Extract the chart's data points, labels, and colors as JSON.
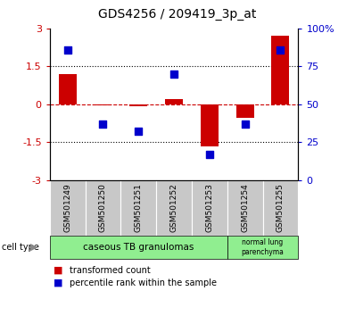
{
  "title": "GDS4256 / 209419_3p_at",
  "samples": [
    "GSM501249",
    "GSM501250",
    "GSM501251",
    "GSM501252",
    "GSM501253",
    "GSM501254",
    "GSM501255"
  ],
  "red_bars": [
    1.2,
    -0.05,
    -0.07,
    0.2,
    -1.65,
    -0.55,
    2.7
  ],
  "blue_dots": [
    86,
    37,
    32,
    70,
    17,
    37,
    86
  ],
  "ylim_left": [
    -3,
    3
  ],
  "ylim_right": [
    0,
    100
  ],
  "y_ticks_left": [
    -3,
    -1.5,
    0,
    1.5,
    3
  ],
  "y_tick_labels_left": [
    "-3",
    "-1.5",
    "0",
    "1.5",
    "3"
  ],
  "y_ticks_right": [
    0,
    25,
    50,
    75,
    100
  ],
  "y_tick_labels_right": [
    "0",
    "25",
    "50",
    "75",
    "100%"
  ],
  "bar_color": "#CC0000",
  "dot_color": "#0000CC",
  "bar_width": 0.5,
  "group1_label": "caseous TB granulomas",
  "group1_count": 5,
  "group2_label": "normal lung\nparenchyma",
  "group2_count": 2,
  "group_color": "#90EE90",
  "cell_type_label": "cell type",
  "legend_red": "transformed count",
  "legend_blue": "percentile rank within the sample",
  "tick_color_left": "#CC0000",
  "tick_color_right": "#0000CC",
  "sample_box_color": "#C8C8C8",
  "title_fontsize": 10,
  "tick_fontsize": 8,
  "label_fontsize": 7
}
